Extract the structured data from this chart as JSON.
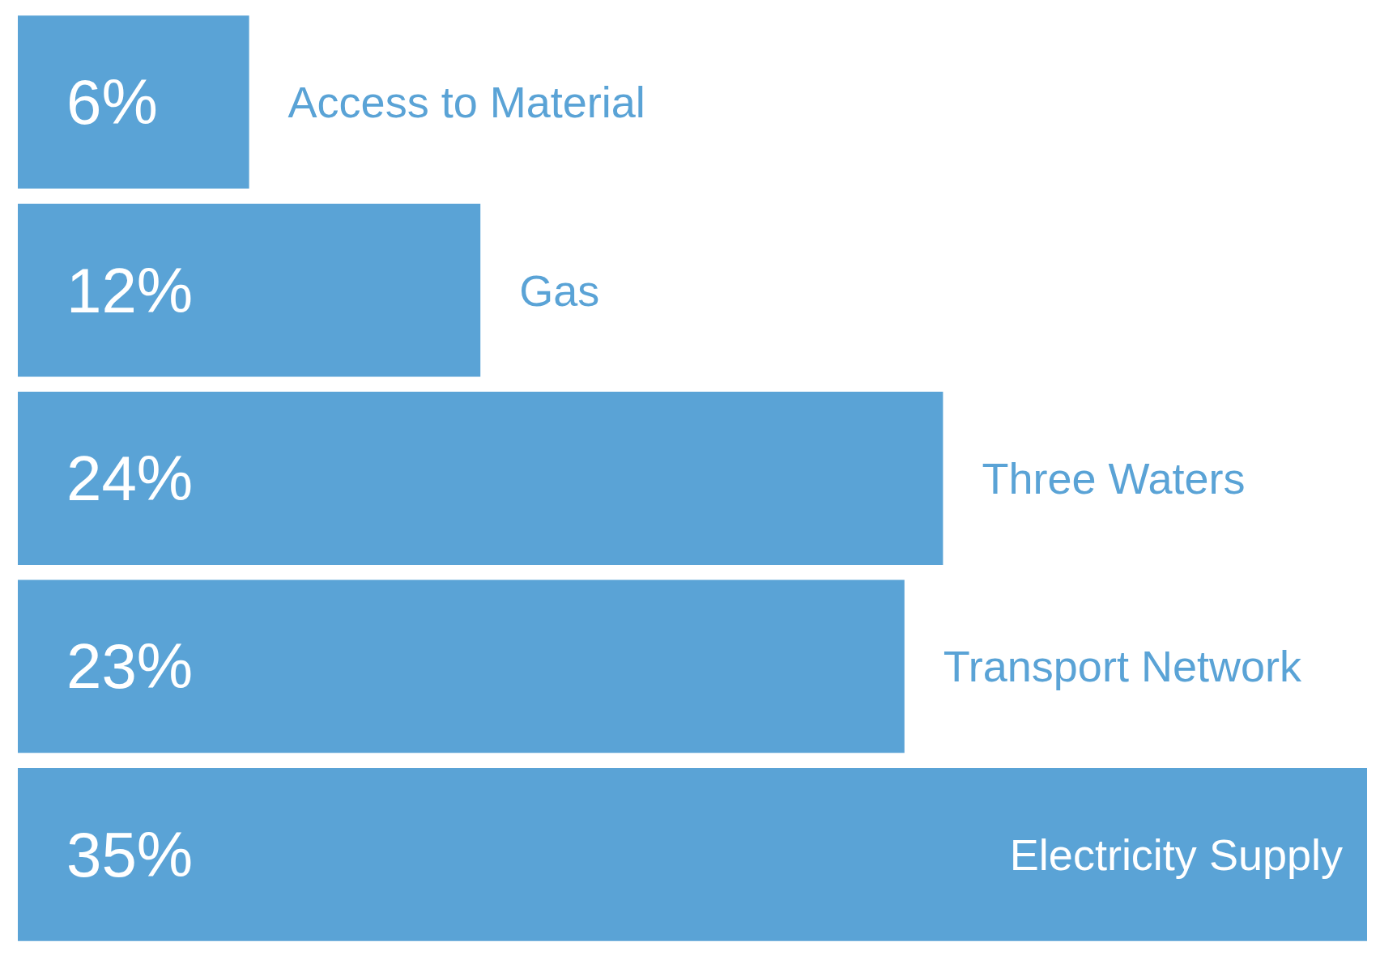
{
  "chart_data": {
    "type": "bar",
    "orientation": "horizontal",
    "categories": [
      "Access to Material",
      "Gas",
      "Three Waters",
      "Transport Network",
      "Electricity Supply"
    ],
    "values": [
      6,
      12,
      24,
      23,
      35
    ],
    "color": "#5aa3d6",
    "value_labels": [
      "6%",
      "12%",
      "24%",
      "23%",
      "35%"
    ]
  }
}
